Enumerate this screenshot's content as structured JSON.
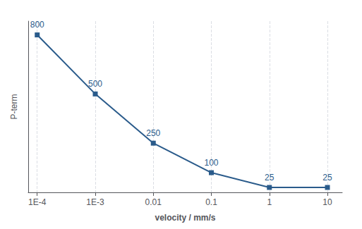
{
  "chart_data": {
    "type": "line",
    "x": [
      0.0001,
      0.001,
      0.01,
      0.1,
      1,
      10
    ],
    "values": [
      800,
      500,
      250,
      100,
      25,
      25
    ],
    "color": "#2a5b8b",
    "marker": "square",
    "data_labels": true,
    "xlabel": "velocity / mm/s",
    "ylabel": "P-term",
    "log": "x",
    "xlim": [
      7e-05,
      18
    ],
    "ylim": [
      0,
      870
    ],
    "xticks": [
      {
        "value": 0.0001,
        "label": "1E-4"
      },
      {
        "value": 0.001,
        "label": "1E-3"
      },
      0.01,
      0.1,
      1,
      10
    ],
    "tick_labels": "x",
    "grid": "x"
  }
}
